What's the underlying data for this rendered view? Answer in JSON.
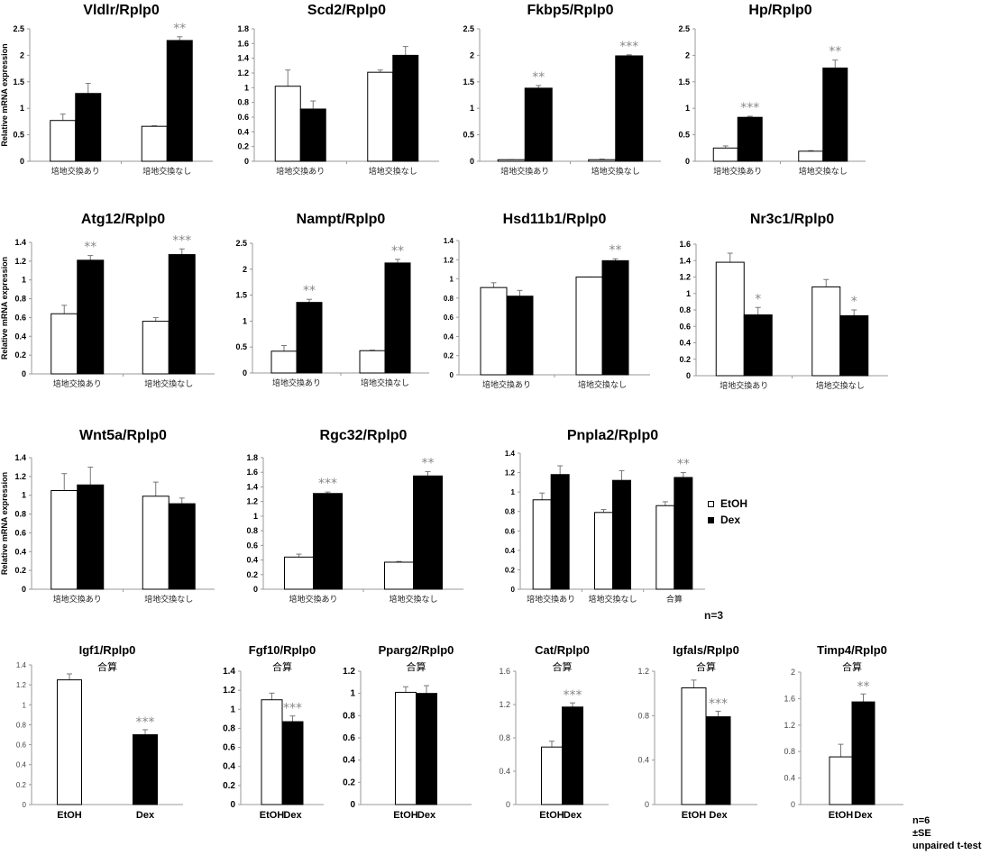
{
  "legend": {
    "items": [
      {
        "label": "EtOH",
        "fill": "#ffffff"
      },
      {
        "label": "Dex",
        "fill": "#000000"
      }
    ]
  },
  "notes": {
    "n3": "n=3",
    "n6": "n=6",
    "se": "±SE",
    "test": "unpaired t-test"
  },
  "colors": {
    "etoh": "#ffffff",
    "dex": "#000000",
    "significance": "#888888",
    "axis": "#999999"
  },
  "chart_data": [
    {
      "type": "bar",
      "title": "Vldlr/Rplp0",
      "ylabel": "Relative mRNA expression",
      "ylim": [
        0,
        2.5
      ],
      "yticks": [
        "0",
        "0.5",
        "1",
        "1.5",
        "2",
        "2.5"
      ],
      "categories": [
        "培地交換あり",
        "培地交換なし"
      ],
      "series": [
        {
          "name": "EtOH",
          "values": [
            0.77,
            0.66
          ],
          "errors": [
            0.12,
            0.01
          ]
        },
        {
          "name": "Dex",
          "values": [
            1.28,
            2.28
          ],
          "errors": [
            0.19,
            0.07
          ]
        }
      ],
      "significance": [
        "",
        "**"
      ]
    },
    {
      "type": "bar",
      "title": "Scd2/Rplp0",
      "ylabel": "",
      "ylim": [
        0,
        1.8
      ],
      "yticks": [
        "0",
        "0.2",
        "0.4",
        "0.6",
        "0.8",
        "1",
        "1.2",
        "1.4",
        "1.6",
        "1.8"
      ],
      "categories": [
        "培地交換あり",
        "培地交換なし"
      ],
      "series": [
        {
          "name": "EtOH",
          "values": [
            1.02,
            1.21
          ],
          "errors": [
            0.22,
            0.03
          ]
        },
        {
          "name": "Dex",
          "values": [
            0.71,
            1.44
          ],
          "errors": [
            0.11,
            0.12
          ]
        }
      ],
      "significance": [
        "",
        ""
      ]
    },
    {
      "type": "bar",
      "title": "Fkbp5/Rplp0",
      "ylabel": "",
      "ylim": [
        0,
        2.5
      ],
      "yticks": [
        "0",
        "0.5",
        "1",
        "1.5",
        "2",
        "2.5"
      ],
      "categories": [
        "培地交換あり",
        "培地交換なし"
      ],
      "series": [
        {
          "name": "EtOH",
          "values": [
            0.03,
            0.03
          ],
          "errors": [
            0.0,
            0.01
          ]
        },
        {
          "name": "Dex",
          "values": [
            1.38,
            1.99
          ],
          "errors": [
            0.05,
            0.02
          ]
        }
      ],
      "significance": [
        "**",
        "***"
      ]
    },
    {
      "type": "bar",
      "title": "Hp/Rplp0",
      "ylabel": "",
      "ylim": [
        0,
        2.5
      ],
      "yticks": [
        "0",
        "0.5",
        "1",
        "1.5",
        "2",
        "2.5"
      ],
      "categories": [
        "培地交換あり",
        "培地交換なし"
      ],
      "series": [
        {
          "name": "EtOH",
          "values": [
            0.25,
            0.19
          ],
          "errors": [
            0.04,
            0.01
          ]
        },
        {
          "name": "Dex",
          "values": [
            0.83,
            1.76
          ],
          "errors": [
            0.02,
            0.15
          ]
        }
      ],
      "significance": [
        "***",
        "**"
      ]
    },
    {
      "type": "bar",
      "title": "Atg12/Rplp0",
      "ylabel": "Relative mRNA expression",
      "ylim": [
        0,
        1.4
      ],
      "yticks": [
        "0",
        "0.2",
        "0.4",
        "0.6",
        "0.8",
        "1",
        "1.2",
        "1.4"
      ],
      "categories": [
        "培地交換あり",
        "培地交換なし"
      ],
      "series": [
        {
          "name": "EtOH",
          "values": [
            0.64,
            0.56
          ],
          "errors": [
            0.09,
            0.04
          ]
        },
        {
          "name": "Dex",
          "values": [
            1.21,
            1.27
          ],
          "errors": [
            0.05,
            0.06
          ]
        }
      ],
      "significance": [
        "**",
        "***"
      ]
    },
    {
      "type": "bar",
      "title": "Nampt/Rplp0",
      "ylabel": "",
      "ylim": [
        0,
        2.5
      ],
      "yticks": [
        "0",
        "0.5",
        "1",
        "1.5",
        "2",
        "2.5"
      ],
      "categories": [
        "培地交換あり",
        "培地交換なし"
      ],
      "series": [
        {
          "name": "EtOH",
          "values": [
            0.42,
            0.43
          ],
          "errors": [
            0.11,
            0.01
          ]
        },
        {
          "name": "Dex",
          "values": [
            1.36,
            2.12
          ],
          "errors": [
            0.06,
            0.07
          ]
        }
      ],
      "significance": [
        "**",
        "**"
      ]
    },
    {
      "type": "bar",
      "title": "Hsd11b1/Rplp0",
      "ylabel": "",
      "ylim": [
        0,
        1.4
      ],
      "yticks": [
        "0",
        "0.2",
        "0.4",
        "0.6",
        "0.8",
        "1",
        "1.2",
        "1.4"
      ],
      "categories": [
        "培地交換あり",
        "培地交換なし"
      ],
      "series": [
        {
          "name": "EtOH",
          "values": [
            0.91,
            1.02
          ],
          "errors": [
            0.05,
            0.0
          ]
        },
        {
          "name": "Dex",
          "values": [
            0.82,
            1.19
          ],
          "errors": [
            0.06,
            0.02
          ]
        }
      ],
      "significance": [
        "",
        "**"
      ]
    },
    {
      "type": "bar",
      "title": "Nr3c1/Rplp0",
      "ylabel": "",
      "ylim": [
        0,
        1.6
      ],
      "yticks": [
        "0",
        "0.2",
        "0.4",
        "0.6",
        "0.8",
        "1",
        "1.2",
        "1.4",
        "1.6"
      ],
      "categories": [
        "培地交換あり",
        "培地交換なし"
      ],
      "series": [
        {
          "name": "EtOH",
          "values": [
            1.38,
            1.08
          ],
          "errors": [
            0.11,
            0.09
          ]
        },
        {
          "name": "Dex",
          "values": [
            0.74,
            0.73
          ],
          "errors": [
            0.09,
            0.07
          ]
        }
      ],
      "significance": [
        "*",
        "*"
      ]
    },
    {
      "type": "bar",
      "title": "Wnt5a/Rplp0",
      "ylabel": "Relative mRNA expression",
      "ylim": [
        0,
        1.4
      ],
      "yticks": [
        "0",
        "0.2",
        "0.4",
        "0.6",
        "0.8",
        "1",
        "1.2",
        "1.4"
      ],
      "categories": [
        "培地交換あり",
        "培地交換なし"
      ],
      "series": [
        {
          "name": "EtOH",
          "values": [
            1.05,
            0.99
          ],
          "errors": [
            0.18,
            0.15
          ]
        },
        {
          "name": "Dex",
          "values": [
            1.11,
            0.91
          ],
          "errors": [
            0.19,
            0.06
          ]
        }
      ],
      "significance": [
        "",
        ""
      ]
    },
    {
      "type": "bar",
      "title": "Rgc32/Rplp0",
      "ylabel": "",
      "ylim": [
        0,
        1.8
      ],
      "yticks": [
        "0",
        "0.2",
        "0.4",
        "0.6",
        "0.8",
        "1",
        "1.2",
        "1.4",
        "1.6",
        "1.8"
      ],
      "categories": [
        "培地交換あり",
        "培地交換なし"
      ],
      "series": [
        {
          "name": "EtOH",
          "values": [
            0.44,
            0.37
          ],
          "errors": [
            0.04,
            0.01
          ]
        },
        {
          "name": "Dex",
          "values": [
            1.31,
            1.55
          ],
          "errors": [
            0.02,
            0.06
          ]
        }
      ],
      "significance": [
        "***",
        "**"
      ]
    },
    {
      "type": "bar",
      "title": "Pnpla2/Rplp0",
      "ylabel": "",
      "ylim": [
        0,
        1.4
      ],
      "yticks": [
        "0",
        "0.2",
        "0.4",
        "0.6",
        "0.8",
        "1",
        "1.2",
        "1.4"
      ],
      "categories": [
        "培地交換あり",
        "培地交換なし",
        "合算"
      ],
      "series": [
        {
          "name": "EtOH",
          "values": [
            0.92,
            0.79,
            0.86
          ],
          "errors": [
            0.07,
            0.03,
            0.04
          ]
        },
        {
          "name": "Dex",
          "values": [
            1.18,
            1.12,
            1.15
          ],
          "errors": [
            0.09,
            0.1,
            0.05
          ]
        }
      ],
      "significance": [
        "",
        "",
        "**"
      ]
    },
    {
      "type": "bar",
      "title": "Igf1/Rplp0",
      "subtitle": "合算",
      "ylabel": "",
      "ylim": [
        0,
        1.4
      ],
      "yticks": [
        "0",
        "0.2",
        "0.4",
        "0.6",
        "0.8",
        "1",
        "1.2",
        "1.4"
      ],
      "categories": [
        "EtOH",
        "Dex"
      ],
      "values": [
        1.25,
        0.7
      ],
      "errors": [
        0.06,
        0.05
      ],
      "significance": [
        "",
        "***"
      ]
    },
    {
      "type": "bar",
      "title": "Fgf10/Rplp0",
      "subtitle": "合算",
      "ylabel": "",
      "ylim": [
        0,
        1.4
      ],
      "yticks": [
        "0",
        "0.2",
        "0.4",
        "0.6",
        "0.8",
        "1",
        "1.2",
        "1.4"
      ],
      "categories": [
        "EtOH",
        "Dex"
      ],
      "values": [
        1.1,
        0.87
      ],
      "errors": [
        0.07,
        0.06
      ],
      "significance": [
        "",
        "***"
      ]
    },
    {
      "type": "bar",
      "title": "Pparg2/Rplp0",
      "subtitle": "合算",
      "ylabel": "",
      "ylim": [
        0,
        1.2
      ],
      "yticks": [
        "0",
        "0.2",
        "0.4",
        "0.6",
        "0.8",
        "1",
        "1.2"
      ],
      "categories": [
        "EtOH",
        "Dex"
      ],
      "values": [
        1.01,
        1.0
      ],
      "errors": [
        0.05,
        0.07
      ],
      "significance": [
        "",
        ""
      ]
    },
    {
      "type": "bar",
      "title": "Cat/Rplp0",
      "subtitle": "合算",
      "ylabel": "",
      "ylim": [
        0,
        1.6
      ],
      "yticks": [
        "0",
        "0.4",
        "0.8",
        "1.2",
        "1.6"
      ],
      "categories": [
        "EtOH",
        "Dex"
      ],
      "values": [
        0.69,
        1.17
      ],
      "errors": [
        0.07,
        0.05
      ],
      "significance": [
        "",
        "***"
      ]
    },
    {
      "type": "bar",
      "title": "Igfals/Rplp0",
      "subtitle": "合算",
      "ylabel": "",
      "ylim": [
        0,
        1.2
      ],
      "yticks": [
        "0",
        "0.4",
        "0.8",
        "1.2"
      ],
      "categories": [
        "EtOH",
        "Dex"
      ],
      "values": [
        1.05,
        0.79
      ],
      "errors": [
        0.07,
        0.05
      ],
      "significance": [
        "",
        "***"
      ]
    },
    {
      "type": "bar",
      "title": "Timp4/Rplp0",
      "subtitle": "合算",
      "ylabel": "",
      "ylim": [
        0,
        2.0
      ],
      "yticks": [
        "0",
        "0.4",
        "0.8",
        "1.2",
        "1.6",
        "2"
      ],
      "categories": [
        "EtOH",
        "Dex"
      ],
      "values": [
        0.72,
        1.55
      ],
      "errors": [
        0.19,
        0.12
      ],
      "significance": [
        "",
        "**"
      ]
    }
  ]
}
